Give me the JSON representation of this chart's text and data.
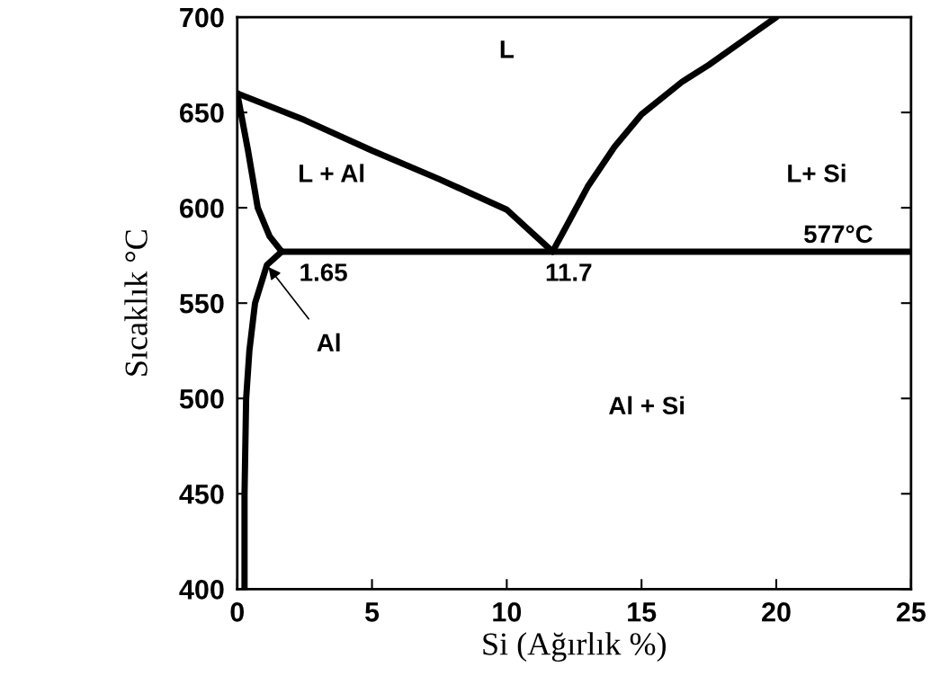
{
  "chart_data": {
    "type": "line",
    "xlabel": "Si (Ağırlık %)",
    "ylabel": "Sıcaklık °C",
    "xlim": [
      0,
      25
    ],
    "xticks": [
      0,
      5,
      10,
      15,
      20,
      25
    ],
    "ylim": [
      400,
      700
    ],
    "yticks": [
      400,
      450,
      500,
      550,
      600,
      650,
      700
    ],
    "grid": false,
    "legend": false,
    "marker": "none",
    "line_style": "solid",
    "series": [
      {
        "color": "#000000",
        "x": [
          0,
          2.5,
          5,
          7.5,
          10,
          11.7
        ],
        "values": [
          660,
          646,
          630,
          615,
          599,
          577
        ]
      },
      {
        "color": "#000000",
        "x": [
          11.7,
          12.2,
          13,
          14,
          15,
          16.5,
          17.5,
          19,
          20
        ],
        "values": [
          577,
          590,
          611,
          632,
          649,
          666,
          675,
          690,
          700
        ]
      },
      {
        "color": "#000000",
        "x": [
          1.65,
          25
        ],
        "values": [
          577,
          577
        ]
      },
      {
        "color": "#000000",
        "x": [
          0,
          0.4,
          0.76,
          1.2,
          1.65
        ],
        "values": [
          660,
          630,
          600,
          585,
          577
        ]
      },
      {
        "color": "#000000",
        "x": [
          1.65,
          1.1,
          0.66,
          0.45,
          0.33,
          0.27,
          0.27
        ],
        "values": [
          577,
          570,
          550,
          525,
          500,
          450,
          400
        ]
      }
    ],
    "annotations": [
      "L",
      "L + Al",
      "L+ Si",
      "577°C",
      "1.65",
      "11.7",
      {
        "text": "Al",
        "x": 1.1,
        "y": 570
      },
      "Al + Si"
    ]
  }
}
